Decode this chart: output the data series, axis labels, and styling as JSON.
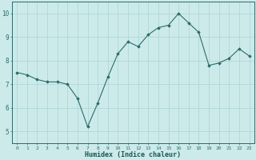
{
  "x": [
    0,
    1,
    2,
    3,
    4,
    5,
    6,
    7,
    8,
    9,
    10,
    11,
    12,
    13,
    14,
    15,
    16,
    17,
    18,
    19,
    20,
    21,
    22,
    23
  ],
  "y": [
    7.5,
    7.4,
    7.2,
    7.1,
    7.1,
    7.0,
    6.4,
    5.2,
    6.2,
    7.3,
    8.3,
    8.8,
    8.6,
    9.1,
    9.4,
    9.5,
    10.0,
    9.6,
    9.2,
    7.8,
    7.9,
    8.1,
    8.5,
    8.2
  ],
  "xlabel": "Humidex (Indice chaleur)",
  "line_color": "#2e6b6b",
  "marker_color": "#2e6b6b",
  "bg_color": "#cceaea",
  "grid_color": "#aad4d4",
  "axis_color": "#2e6b6b",
  "tick_color": "#2e6b6b",
  "ylim": [
    4.5,
    10.5
  ],
  "xlim": [
    -0.5,
    23.5
  ],
  "yticks": [
    5,
    6,
    7,
    8,
    9,
    10
  ],
  "xticks": [
    0,
    1,
    2,
    3,
    4,
    5,
    6,
    7,
    8,
    9,
    10,
    11,
    12,
    13,
    14,
    15,
    16,
    17,
    18,
    19,
    20,
    21,
    22,
    23
  ],
  "font_color": "#1a5555"
}
